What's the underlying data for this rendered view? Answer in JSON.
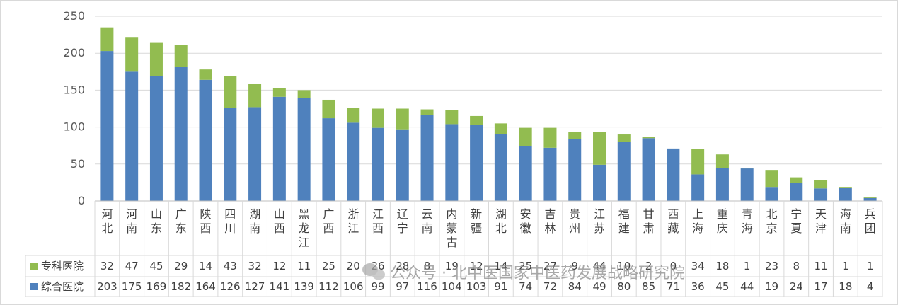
{
  "watermark": "公众号 · 北中医国家中医药发展战略研究院",
  "colors": {
    "specialty": "#92bc50",
    "general": "#4f81bd",
    "grid": "#d9d9d9",
    "axis": "#bfbfbf"
  },
  "chart_data": {
    "type": "bar",
    "stacked": true,
    "categories": [
      "河北",
      "河南",
      "山东",
      "广东",
      "陕西",
      "四川",
      "湖南",
      "山西",
      "黑龙江",
      "广西",
      "浙江",
      "江西",
      "辽宁",
      "云南",
      "内蒙古",
      "新疆",
      "湖北",
      "安徽",
      "吉林",
      "贵州",
      "江苏",
      "福建",
      "甘肃",
      "西藏",
      "上海",
      "重庆",
      "青海",
      "北京",
      "宁夏",
      "天津",
      "海南",
      "兵团"
    ],
    "series": [
      {
        "name": "综合医院",
        "color": "#4f81bd",
        "values": [
          203,
          175,
          169,
          182,
          164,
          126,
          127,
          141,
          139,
          112,
          106,
          99,
          97,
          116,
          104,
          103,
          91,
          74,
          72,
          84,
          49,
          80,
          85,
          71,
          36,
          45,
          44,
          19,
          24,
          17,
          18,
          4
        ]
      },
      {
        "name": "专科医院",
        "color": "#92bc50",
        "values": [
          32,
          47,
          45,
          29,
          14,
          43,
          32,
          12,
          11,
          25,
          20,
          26,
          28,
          8,
          19,
          12,
          14,
          25,
          27,
          9,
          44,
          10,
          2,
          0,
          34,
          18,
          1,
          23,
          8,
          11,
          1,
          1
        ]
      }
    ],
    "ylim": [
      0,
      250
    ],
    "yticks": [
      0,
      50,
      100,
      150,
      200,
      250
    ],
    "grid": true,
    "legend": "data-table"
  }
}
